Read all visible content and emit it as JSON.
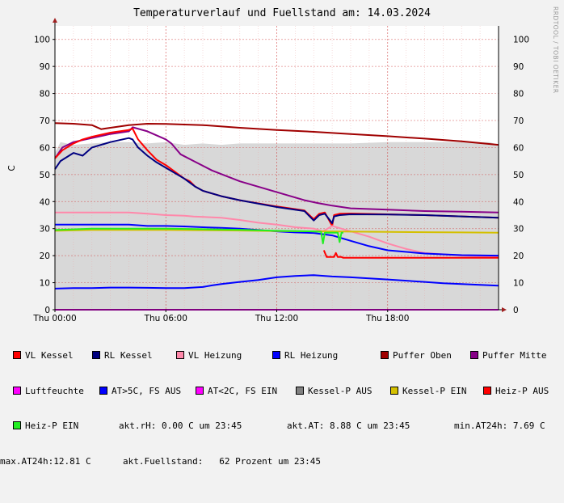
{
  "title": "Temperaturverlauf und Fuellstand am: 14.03.2024",
  "side_text": "RRDTOOL / TOBI OETIKER",
  "colors": {
    "background": "#f2f2f2",
    "plot_bg": "#ffffff",
    "grid_minor": "#e8a6a6",
    "grid_major": "#d04040",
    "area": "#d8d8d8",
    "axis_arrow": "#a02020",
    "baseline": "#e040e0"
  },
  "legend": [
    {
      "label": "VL Kessel",
      "color": "#ff0000"
    },
    {
      "label": "RL Kessel",
      "color": "#000080"
    },
    {
      "label": "VL Heizung",
      "color": "#ff88aa"
    },
    {
      "label": "RL Heizung",
      "color": "#0000ff"
    },
    {
      "label": "Puffer Oben",
      "color": "#a00000"
    },
    {
      "label": "Puffer Mitte",
      "color": "#880088"
    },
    {
      "label": "Luftfeuchte",
      "color": "#ff00ff"
    },
    {
      "label": "AT>5C, FS AUS",
      "color": "#0000ff"
    },
    {
      "label": "AT<2C, FS EIN",
      "color": "#ff00ff"
    },
    {
      "label": "Kessel-P AUS",
      "color": "#808080"
    },
    {
      "label": "Kessel-P EIN",
      "color": "#d4c000"
    },
    {
      "label": "Heiz-P AUS",
      "color": "#ff0000"
    },
    {
      "label": "Heiz-P EIN",
      "color": "#22ee22"
    }
  ],
  "status": {
    "rh": "akt.rH: 0.00 C um 23:45",
    "at": "akt.AT: 8.88 C um 23:45",
    "min_at": "min.AT24h: 7.69 C",
    "max_at": "max.AT24h:12.81 C",
    "fuellstand": "akt.Fuellstand:   62 Prozent um 23:45"
  },
  "chart_data": {
    "type": "line",
    "title": "Temperaturverlauf und Fuellstand am: 14.03.2024",
    "ylabel": "C",
    "ylim": [
      0,
      105
    ],
    "y_ticks": [
      0,
      10,
      20,
      30,
      40,
      50,
      60,
      70,
      80,
      90,
      100
    ],
    "x_unit": "hours",
    "xlim": [
      0,
      24
    ],
    "x_ticks": [
      {
        "value": 0,
        "label": "Thu 00:00"
      },
      {
        "value": 6,
        "label": "Thu 06:00"
      },
      {
        "value": 12,
        "label": "Thu 12:00"
      },
      {
        "value": 18,
        "label": "Thu 18:00"
      }
    ],
    "grid": true,
    "series": [
      {
        "name": "Kessel-P AUS",
        "kind": "area",
        "color": "#d8d8d8",
        "x": [
          0,
          0.3,
          1,
          2,
          3,
          4,
          5,
          6,
          7,
          8,
          9,
          10,
          12,
          14,
          16,
          18,
          20,
          22,
          23.5,
          24
        ],
        "y": [
          58,
          62,
          61,
          61.5,
          62,
          62,
          61.5,
          62,
          61,
          61.5,
          61,
          61.5,
          61.5,
          61.5,
          61.5,
          62,
          62,
          62,
          62,
          61
        ]
      },
      {
        "name": "Puffer Oben",
        "color": "#a00000",
        "x": [
          0,
          1,
          2,
          2.5,
          3,
          4,
          5,
          6,
          8,
          10,
          12,
          14,
          16,
          18,
          20,
          22,
          24
        ],
        "y": [
          69,
          68.8,
          68.3,
          66.8,
          67.3,
          68.3,
          68.8,
          68.7,
          68.3,
          67.3,
          66.5,
          65.8,
          65,
          64.2,
          63.3,
          62.3,
          61
        ]
      },
      {
        "name": "Puffer Mitte",
        "color": "#880088",
        "x": [
          0,
          0.4,
          1,
          2,
          3,
          4,
          4.2,
          5,
          6,
          6.3,
          6.8,
          7.5,
          8.5,
          10,
          12,
          13.5,
          14.2,
          15,
          16,
          18,
          20,
          22,
          24
        ],
        "y": [
          56,
          60,
          62,
          63.5,
          65,
          66,
          67.5,
          66,
          63,
          61.5,
          57.5,
          55,
          51.5,
          47.5,
          43.5,
          40.5,
          39.5,
          38.5,
          37.5,
          37,
          36.5,
          36.3,
          36
        ]
      },
      {
        "name": "VL Kessel",
        "color": "#ff0000",
        "x": [
          0,
          0.4,
          1,
          1.5,
          2,
          3,
          4,
          4.2,
          4.5,
          5,
          5.5,
          6,
          6.5,
          7,
          7.3,
          7.6,
          8,
          9,
          10,
          12,
          13.5,
          14,
          14.3,
          14.6,
          15,
          15.1,
          15.4,
          16,
          18,
          20,
          24
        ],
        "y": [
          56,
          59,
          61.5,
          63,
          64,
          65.5,
          66.5,
          67,
          63,
          59,
          55.5,
          53.5,
          51,
          48.5,
          47.5,
          45.5,
          44,
          42,
          40.5,
          38.2,
          36.7,
          33.5,
          35.5,
          36,
          31,
          35,
          35.5,
          35.6,
          35.3,
          35,
          34
        ]
      },
      {
        "name": "RL Kessel",
        "color": "#000080",
        "x": [
          0,
          0.3,
          1,
          1.5,
          2,
          3,
          4,
          4.2,
          4.5,
          5,
          5.5,
          6,
          6.5,
          7,
          7.3,
          7.6,
          8,
          9,
          10,
          12,
          13.5,
          14,
          14.3,
          14.6,
          15,
          15.1,
          15.4,
          16,
          18,
          20,
          24
        ],
        "y": [
          52,
          55,
          58,
          57,
          60,
          62,
          63.5,
          63,
          60,
          57,
          54.5,
          52.5,
          50.5,
          48.5,
          47,
          45.5,
          44,
          42,
          40.5,
          38,
          36.5,
          33,
          35,
          35.5,
          32,
          34.5,
          35,
          35.3,
          35.2,
          35,
          34
        ]
      },
      {
        "name": "VL Heizung",
        "color": "#ff88aa",
        "x": [
          0,
          1,
          2,
          3,
          4,
          5,
          6,
          7,
          7.5,
          9,
          10,
          11,
          12,
          13,
          14,
          14.5,
          15,
          16,
          17,
          18,
          19,
          20,
          22,
          24
        ],
        "y": [
          36,
          36,
          36,
          36,
          36,
          35.5,
          35,
          34.8,
          34.5,
          34,
          33.2,
          32.2,
          31.5,
          30.5,
          30,
          29,
          31,
          29,
          27,
          24.5,
          22.5,
          21,
          20,
          19.5
        ]
      },
      {
        "name": "RL Heizung",
        "color": "#0000ff",
        "x": [
          0,
          1,
          2,
          3,
          4,
          5,
          6,
          7,
          8,
          9,
          10,
          11,
          12,
          13,
          14,
          15,
          16,
          17,
          18,
          20,
          22,
          24
        ],
        "y": [
          31.5,
          31.5,
          31.5,
          31.5,
          31.5,
          31,
          31,
          30.8,
          30.5,
          30.3,
          30,
          29.5,
          29,
          28.6,
          28.4,
          27.5,
          25.5,
          23.5,
          22,
          20.8,
          20.2,
          20
        ]
      },
      {
        "name": "Kessel-P EIN",
        "color": "#d4c000",
        "x": [
          0,
          2,
          4,
          6,
          8,
          10,
          12,
          14,
          16,
          18,
          20,
          22,
          24
        ],
        "y": [
          29.2,
          29.5,
          29.5,
          29.5,
          29.4,
          29.3,
          29.1,
          29,
          28.9,
          28.8,
          28.7,
          28.6,
          28.5
        ]
      },
      {
        "name": "Heiz-P EIN",
        "color": "#22ee22",
        "x": [
          0,
          2,
          4,
          6,
          8,
          10,
          12,
          14,
          14.4,
          14.5,
          14.6,
          14.7,
          15.3,
          15.4,
          15.5,
          15.6
        ],
        "y": [
          29.5,
          30,
          30,
          30,
          29.8,
          29.6,
          29.2,
          29,
          28.8,
          24.5,
          28.5,
          28.5,
          28.5,
          25,
          28.5,
          28.5
        ]
      },
      {
        "name": "Heiz-P AUS",
        "color": "#ff0000",
        "x": [
          14.55,
          14.7,
          15.1,
          15.2,
          15.3,
          15.5,
          15.6,
          16,
          18,
          20,
          22,
          24
        ],
        "y": [
          22,
          19.5,
          19.5,
          21,
          19.5,
          19.5,
          19.2,
          19.2,
          19.2,
          19.2,
          19.2,
          19.2
        ]
      },
      {
        "name": "AT>5C, FS AUS",
        "color": "#0000ff",
        "x": [
          0,
          1,
          2,
          3,
          4,
          5,
          6,
          7,
          8,
          8.5,
          9,
          10,
          11,
          12,
          13,
          14,
          15,
          16,
          18,
          20,
          21,
          22,
          23,
          24
        ],
        "y": [
          7.8,
          8,
          8,
          8.2,
          8.2,
          8.1,
          8,
          8,
          8.4,
          9,
          9.5,
          10.3,
          11,
          12,
          12.5,
          12.8,
          12.3,
          12,
          11.2,
          10.3,
          9.8,
          9.5,
          9.2,
          8.9
        ]
      },
      {
        "name": "Luftfeuchte",
        "color": "#ff00ff",
        "x": [
          0,
          24
        ],
        "y": [
          0,
          0
        ]
      }
    ]
  }
}
